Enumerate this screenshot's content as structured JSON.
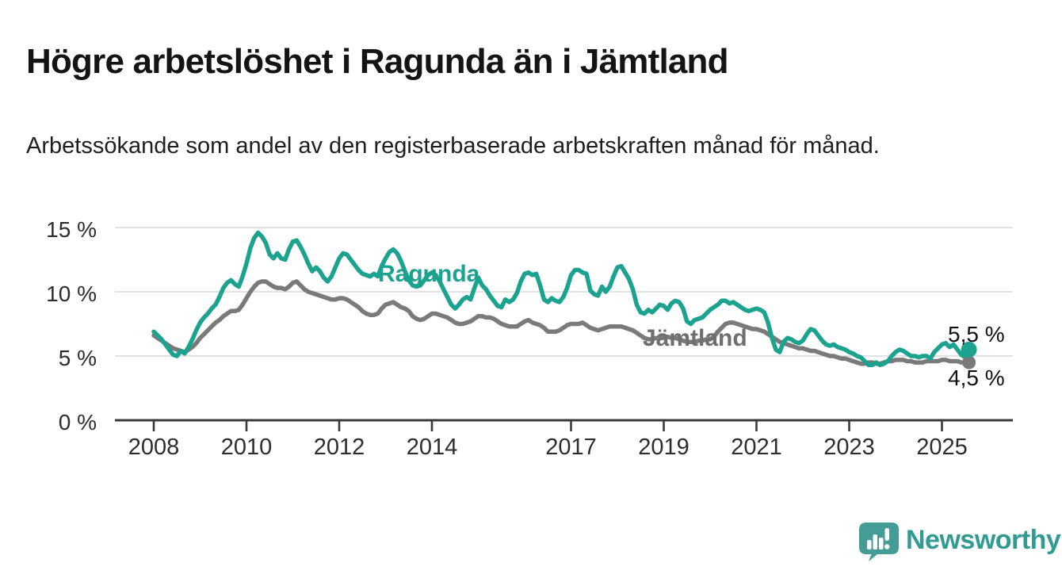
{
  "header": {
    "title": "Högre arbetslöshet i Ragunda än i Jämtland",
    "subtitle": "Arbetssökande som andel av den registerbaserade arbetskraften månad för månad."
  },
  "footer": {
    "brand": "Newsworthy"
  },
  "colors": {
    "background": "#ffffff",
    "title_text": "#141414",
    "ragunda_teal": "#1ba390",
    "jamtland_gray": "#7a7a7a",
    "jamtland_label_gray": "#6f6f6f",
    "grid_gray": "#d9d9d9",
    "axis_dark": "#3a3a3a",
    "tick_text": "#2d2d2d",
    "value_label_text": "#111111",
    "brand_icon_teal": "#459c96",
    "brand_text_teal": "#2f9b91"
  },
  "chart_data": {
    "type": "line",
    "title": "Högre arbetslöshet i Ragunda än i Jämtland",
    "subtitle": "Arbetssökande som andel av den registerbaserade arbetskraften månad för månad.",
    "unit": "%",
    "frequency": "monthly",
    "start": "2008-01",
    "end": "2025-08",
    "x_start_year": 2008,
    "x_axis_range": [
      2007.2,
      2026.5
    ],
    "y_axis_range": [
      0,
      15
    ],
    "grid": "horizontal",
    "grid_color": "#d9d9d9",
    "axis_color": "#3a3a3a",
    "axis_text_color": "#2d2d2d",
    "x_ticks": [
      {
        "year": 2008,
        "label": "2008"
      },
      {
        "year": 2010,
        "label": "2010"
      },
      {
        "year": 2012,
        "label": "2012"
      },
      {
        "year": 2014,
        "label": "2014"
      },
      {
        "year": 2017,
        "label": "2017"
      },
      {
        "year": 2019,
        "label": "2019"
      },
      {
        "year": 2021,
        "label": "2021"
      },
      {
        "year": 2023,
        "label": "2023"
      },
      {
        "year": 2025,
        "label": "2025"
      }
    ],
    "y_ticks": [
      {
        "value": 0,
        "label": "0 %"
      },
      {
        "value": 5,
        "label": "5 %"
      },
      {
        "value": 10,
        "label": "10 %"
      },
      {
        "value": 15,
        "label": "15 %"
      }
    ],
    "series": [
      {
        "name": "Ragunda",
        "key": "ragunda",
        "color": "#1ba390",
        "end_value": 5.5,
        "end_label": "5,5 %",
        "values": [
          6.9,
          6.6,
          6.3,
          5.9,
          5.5,
          5.1,
          5.0,
          5.4,
          5.2,
          5.7,
          6.3,
          7.0,
          7.6,
          8.0,
          8.3,
          8.7,
          9.0,
          9.6,
          10.3,
          10.7,
          10.9,
          10.6,
          10.4,
          11.2,
          12.2,
          13.4,
          14.2,
          14.6,
          14.3,
          13.8,
          12.9,
          12.6,
          13.0,
          12.6,
          12.5,
          13.3,
          13.9,
          14.0,
          13.5,
          12.9,
          12.2,
          11.6,
          11.9,
          11.6,
          11.1,
          10.8,
          11.2,
          11.9,
          12.6,
          13.0,
          12.9,
          12.5,
          12.1,
          11.7,
          11.4,
          11.3,
          11.2,
          11.4,
          11.2,
          12.0,
          12.6,
          13.1,
          13.3,
          13.0,
          12.4,
          11.6,
          10.9,
          10.5,
          10.4,
          10.5,
          10.9,
          11.3,
          11.5,
          11.3,
          10.8,
          10.2,
          9.6,
          9.0,
          8.7,
          9.0,
          9.4,
          9.6,
          9.4,
          10.3,
          11.1,
          10.5,
          10.2,
          9.7,
          9.3,
          8.9,
          8.8,
          9.4,
          9.2,
          9.4,
          9.9,
          10.8,
          11.4,
          11.5,
          11.3,
          11.4,
          10.5,
          9.4,
          9.2,
          9.5,
          9.3,
          9.2,
          9.6,
          10.3,
          11.3,
          11.7,
          11.7,
          11.5,
          11.4,
          10.1,
          9.8,
          9.7,
          10.4,
          10.0,
          10.4,
          11.2,
          11.9,
          12.0,
          11.5,
          11.0,
          10.2,
          9.0,
          8.4,
          8.3,
          8.6,
          8.4,
          8.7,
          9.0,
          8.9,
          8.6,
          9.1,
          9.3,
          9.2,
          8.7,
          7.7,
          7.5,
          7.8,
          7.9,
          8.0,
          8.3,
          8.6,
          8.8,
          9.0,
          9.3,
          9.3,
          9.1,
          9.2,
          9.0,
          8.8,
          8.6,
          8.5,
          8.6,
          8.7,
          8.6,
          8.4,
          7.6,
          6.4,
          5.5,
          5.3,
          6.1,
          6.4,
          6.3,
          6.1,
          6.0,
          6.2,
          6.7,
          7.1,
          7.0,
          6.6,
          6.2,
          5.9,
          5.8,
          5.9,
          5.7,
          5.6,
          5.5,
          5.3,
          5.2,
          5.0,
          4.9,
          4.6,
          4.3,
          4.3,
          4.5,
          4.3,
          4.4,
          4.6,
          5.0,
          5.3,
          5.5,
          5.4,
          5.2,
          5.0,
          5.0,
          4.9,
          5.0,
          5.0,
          4.8,
          5.3,
          5.6,
          5.9,
          6.0,
          5.7,
          5.9,
          5.5,
          5.1,
          4.9,
          5.5
        ]
      },
      {
        "name": "Jämtland",
        "key": "jamtland",
        "color": "#7a7a7a",
        "end_value": 4.5,
        "end_label": "4,5 %",
        "values": [
          6.6,
          6.4,
          6.2,
          6.0,
          5.8,
          5.6,
          5.5,
          5.4,
          5.3,
          5.5,
          5.7,
          6.0,
          6.4,
          6.7,
          7.0,
          7.3,
          7.6,
          7.8,
          8.1,
          8.3,
          8.5,
          8.5,
          8.6,
          9.0,
          9.5,
          10.0,
          10.4,
          10.7,
          10.8,
          10.8,
          10.6,
          10.4,
          10.3,
          10.3,
          10.2,
          10.4,
          10.7,
          10.8,
          10.5,
          10.2,
          10.0,
          9.9,
          9.8,
          9.7,
          9.6,
          9.5,
          9.4,
          9.4,
          9.5,
          9.5,
          9.4,
          9.2,
          9.0,
          8.8,
          8.5,
          8.3,
          8.2,
          8.2,
          8.3,
          8.7,
          9.0,
          9.1,
          9.2,
          9.0,
          8.8,
          8.7,
          8.5,
          8.1,
          7.9,
          7.8,
          7.9,
          8.1,
          8.3,
          8.3,
          8.2,
          8.1,
          8.0,
          7.8,
          7.6,
          7.5,
          7.5,
          7.6,
          7.7,
          7.9,
          8.1,
          8.1,
          8.0,
          8.0,
          7.9,
          7.7,
          7.5,
          7.4,
          7.3,
          7.3,
          7.3,
          7.5,
          7.7,
          7.8,
          7.6,
          7.5,
          7.4,
          7.2,
          6.9,
          6.9,
          6.9,
          7.0,
          7.2,
          7.4,
          7.5,
          7.5,
          7.5,
          7.6,
          7.4,
          7.2,
          7.1,
          7.0,
          7.1,
          7.2,
          7.3,
          7.3,
          7.3,
          7.3,
          7.2,
          7.1,
          7.0,
          6.8,
          6.6,
          6.4,
          6.3,
          6.3,
          6.4,
          6.4,
          6.5,
          6.5,
          6.4,
          6.4,
          6.3,
          6.2,
          6.1,
          6.1,
          6.1,
          6.2,
          6.2,
          6.3,
          6.3,
          6.5,
          6.9,
          7.2,
          7.5,
          7.6,
          7.6,
          7.5,
          7.4,
          7.3,
          7.2,
          7.1,
          7.1,
          7.0,
          6.9,
          6.7,
          6.5,
          6.3,
          6.1,
          6.0,
          5.9,
          5.8,
          5.7,
          5.6,
          5.6,
          5.5,
          5.4,
          5.4,
          5.3,
          5.2,
          5.1,
          5.0,
          5.0,
          4.9,
          4.8,
          4.8,
          4.7,
          4.6,
          4.5,
          4.4,
          4.4,
          4.5,
          4.5,
          4.4,
          4.4,
          4.5,
          4.6,
          4.6,
          4.7,
          4.7,
          4.7,
          4.6,
          4.6,
          4.5,
          4.5,
          4.5,
          4.6,
          4.6,
          4.6,
          4.6,
          4.7,
          4.7,
          4.6,
          4.6,
          4.6,
          4.5,
          4.5,
          4.5
        ]
      }
    ]
  }
}
